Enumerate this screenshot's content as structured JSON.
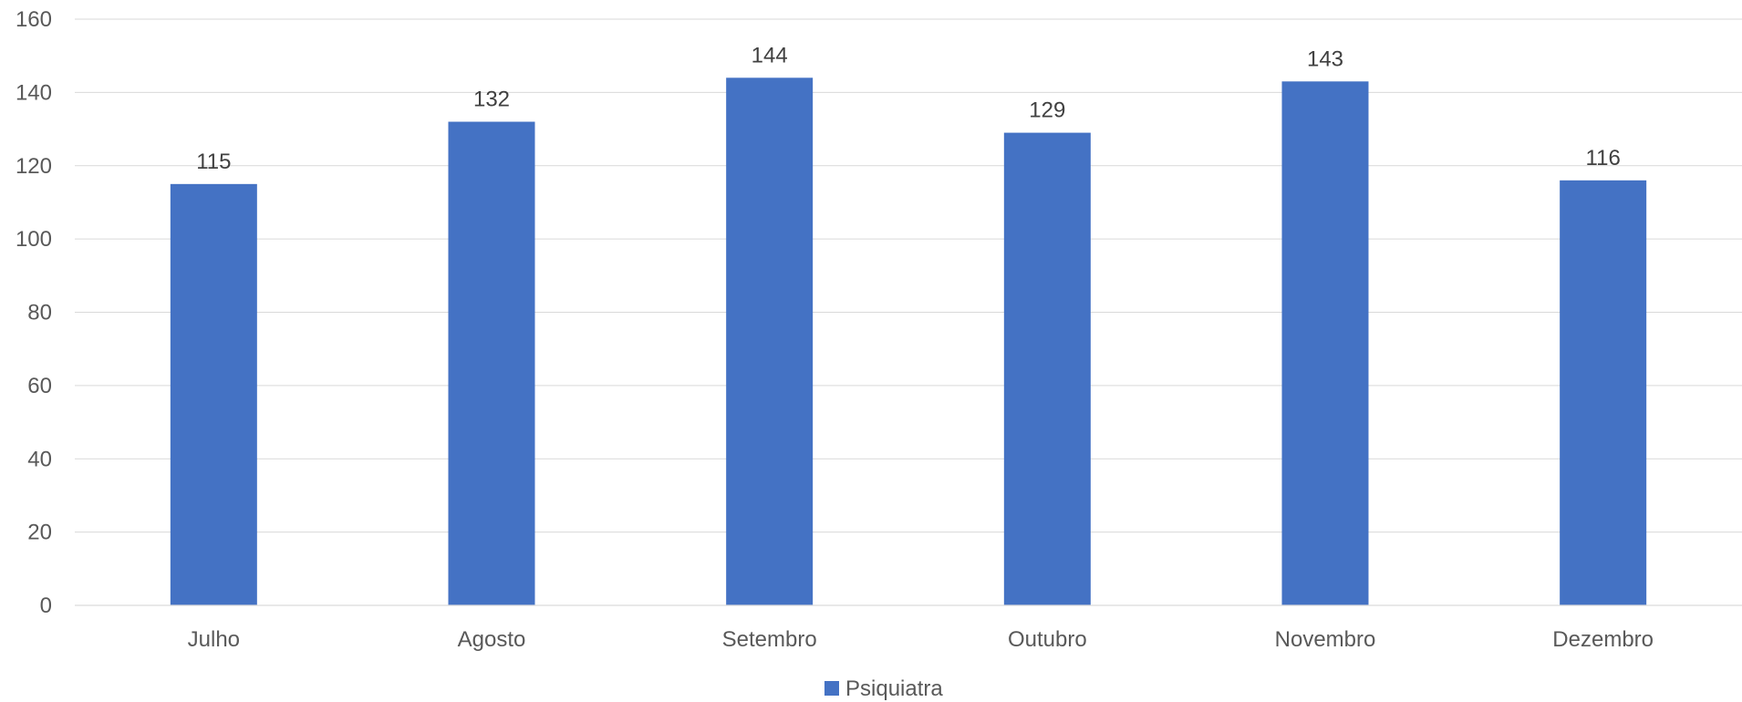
{
  "chart_data": {
    "type": "bar",
    "categories": [
      "Julho",
      "Agosto",
      "Setembro",
      "Outubro",
      "Novembro",
      "Dezembro"
    ],
    "series": [
      {
        "name": "Psiquiatra",
        "values": [
          115,
          132,
          144,
          129,
          143,
          116
        ],
        "color": "#4472c4"
      }
    ],
    "ylim": [
      0,
      160
    ],
    "yticks": [
      0,
      20,
      40,
      60,
      80,
      100,
      120,
      140,
      160
    ],
    "grid": true,
    "data_labels": true,
    "legend_position": "bottom"
  }
}
